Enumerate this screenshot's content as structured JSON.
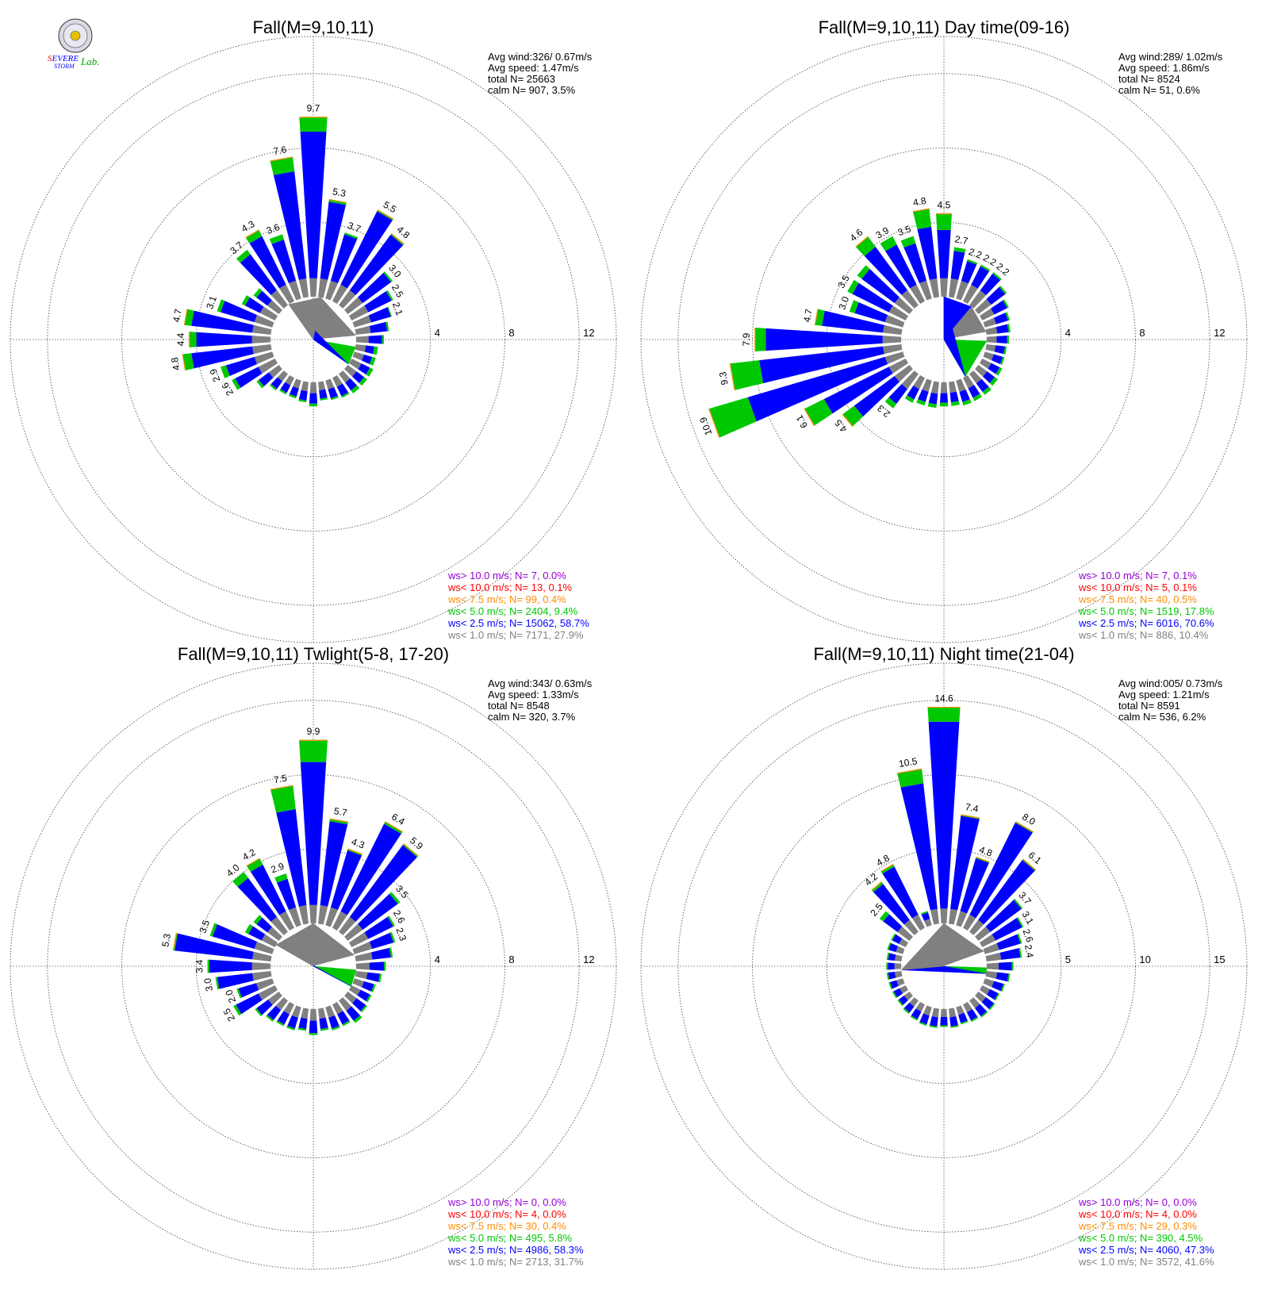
{
  "colors": {
    "calm": "#808080",
    "ws_gt_10": "#9400d3",
    "ws_lt_10": "#ff0000",
    "ws_lt_7_5": "#ff8c00",
    "ws_lt_5": "#00c800",
    "ws_lt_2_5": "#0000ff",
    "ws_lt_1": "#808080",
    "ring": "#555555"
  },
  "logo": {
    "text": "SEVERE STORM Lab.",
    "icon": "lab-seal-icon"
  },
  "chart_data": [
    {
      "type": "wind-rose",
      "title": "Fall(M=9,10,11)",
      "rings": [
        4,
        8,
        12
      ],
      "rmax": 14,
      "stats": [
        "Avg wind:326/ 0.67m/s",
        "Avg speed: 1.47m/s",
        "total N=     25663",
        "calm N=    907,   3.5%"
      ],
      "legend": [
        "ws> 10.0 m/s; N=     7,  0.0%",
        "ws< 10.0 m/s; N=    13,  0.1%",
        "ws<  7.5 m/s; N=    99,  0.4%",
        "ws<  5.0 m/s; N=  2404,  9.4%",
        "ws<  2.5 m/s; N= 15062, 58.7%",
        "ws<  1.0 m/s; N=  7171, 27.9%"
      ],
      "calm_sectors": [
        {
          "start": 10,
          "end": 85,
          "band": "ws_lt_1"
        },
        {
          "start": 85,
          "end": 100,
          "band": "none"
        },
        {
          "start": 100,
          "end": 125,
          "band": "ws_lt_5"
        },
        {
          "start": 125,
          "end": 325,
          "band": "ws_lt_2_5"
        },
        {
          "start": 325,
          "end": 370,
          "band": "ws_lt_1"
        }
      ],
      "directions": [
        0,
        10,
        20,
        30,
        40,
        50,
        60,
        70,
        80,
        90,
        100,
        110,
        120,
        130,
        140,
        150,
        160,
        170,
        180,
        190,
        200,
        210,
        220,
        230,
        240,
        250,
        260,
        270,
        280,
        290,
        300,
        310,
        320,
        330,
        340,
        350
      ],
      "values": [
        9.7,
        5.3,
        3.7,
        5.5,
        4.8,
        3.0,
        2.5,
        2.1,
        1.8,
        1.5,
        1.2,
        1.2,
        1.3,
        1.3,
        1.3,
        1.2,
        1.1,
        1.0,
        1.3,
        1.1,
        1.0,
        1.0,
        1.1,
        1.5,
        2.6,
        2.9,
        4.8,
        4.4,
        4.7,
        3.1,
        2.0,
        1.7,
        3.7,
        4.3,
        3.6,
        7.6
      ],
      "green": [
        0.8,
        0.15,
        0.1,
        0.1,
        0.1,
        0.1,
        0.1,
        0.05,
        0.1,
        0.1,
        0.2,
        0.2,
        0.2,
        0.2,
        0.2,
        0.1,
        0.1,
        0.1,
        0.15,
        0.1,
        0.1,
        0.1,
        0.1,
        0.15,
        0.2,
        0.3,
        0.5,
        0.4,
        0.4,
        0.2,
        0.2,
        0.2,
        0.3,
        0.4,
        0.3,
        0.8
      ],
      "labels": [
        9.7,
        5.3,
        3.7,
        5.5,
        4.8,
        3.0,
        2.5,
        2.1,
        null,
        null,
        null,
        null,
        null,
        null,
        null,
        null,
        null,
        null,
        null,
        null,
        null,
        null,
        null,
        null,
        2.6,
        2.9,
        4.8,
        4.4,
        4.7,
        3.1,
        null,
        null,
        3.7,
        4.3,
        3.6,
        7.6
      ]
    },
    {
      "type": "wind-rose",
      "title": "Fall(M=9,10,11) Day time(09-16)",
      "rings": [
        4,
        8,
        12
      ],
      "rmax": 14,
      "stats": [
        "Avg wind:289/ 1.02m/s",
        "Avg speed: 1.86m/s",
        "total N=      8524",
        "calm N=     51,   0.6%"
      ],
      "legend": [
        "ws> 10.0 m/s; N=     7,  0.1%",
        "ws< 10.0 m/s; N=     5,  0.1%",
        "ws<  7.5 m/s; N=    40,  0.5%",
        "ws<  5.0 m/s; N=  1519, 17.8%",
        "ws<  2.5 m/s; N=  6016, 70.6%",
        "ws<  1.0 m/s; N=   886, 10.4%"
      ],
      "calm_sectors": [
        {
          "start": 0,
          "end": 40,
          "band": "ws_lt_2_5"
        },
        {
          "start": 40,
          "end": 80,
          "band": "ws_lt_1"
        },
        {
          "start": 80,
          "end": 92,
          "band": "none"
        },
        {
          "start": 92,
          "end": 150,
          "band": "ws_lt_5"
        },
        {
          "start": 150,
          "end": 360,
          "band": "ws_lt_2_5"
        }
      ],
      "directions": [
        0,
        10,
        20,
        30,
        40,
        50,
        60,
        70,
        80,
        90,
        100,
        110,
        120,
        130,
        140,
        150,
        160,
        170,
        180,
        190,
        200,
        210,
        220,
        230,
        240,
        250,
        260,
        270,
        280,
        290,
        300,
        310,
        320,
        330,
        340,
        350
      ],
      "values": [
        4.5,
        2.7,
        2.2,
        2.2,
        2.2,
        1.9,
        1.6,
        1.4,
        1.3,
        1.2,
        1.1,
        1.1,
        1.2,
        1.3,
        1.4,
        1.4,
        1.4,
        1.3,
        1.3,
        1.4,
        1.4,
        1.5,
        2.3,
        4.5,
        6.1,
        10.9,
        9.3,
        7.9,
        4.7,
        3.0,
        3.5,
        3.5,
        4.6,
        3.9,
        3.5,
        4.8
      ],
      "green": [
        0.9,
        0.2,
        0.1,
        0.1,
        0.1,
        0.1,
        0.1,
        0.1,
        0.1,
        0.1,
        0.1,
        0.1,
        0.15,
        0.2,
        0.2,
        0.2,
        0.2,
        0.2,
        0.2,
        0.2,
        0.2,
        0.2,
        0.3,
        0.8,
        1.2,
        2.2,
        1.6,
        0.6,
        0.4,
        0.3,
        0.3,
        0.3,
        0.7,
        0.5,
        0.4,
        1.0
      ],
      "labels": [
        4.5,
        2.7,
        2.2,
        2.2,
        2.2,
        null,
        null,
        null,
        null,
        null,
        null,
        null,
        null,
        null,
        null,
        null,
        null,
        null,
        null,
        null,
        null,
        null,
        2.3,
        4.5,
        6.1,
        10.9,
        9.3,
        7.9,
        4.7,
        3.0,
        3.5,
        null,
        4.6,
        3.9,
        3.5,
        4.8
      ]
    },
    {
      "type": "wind-rose",
      "title": "Fall(M=9,10,11) Twlight(5-8, 17-20)",
      "rings": [
        4,
        8,
        12
      ],
      "rmax": 14,
      "stats": [
        "Avg wind:343/ 0.63m/s",
        "Avg speed: 1.33m/s",
        "total N=      8548",
        "calm N=    320,   3.7%"
      ],
      "legend": [
        "ws> 10.0 m/s; N=     0,  0.0%",
        "ws< 10.0 m/s; N=     4,  0.0%",
        "ws<  7.5 m/s; N=    30,  0.4%",
        "ws<  5.0 m/s; N=   495,  5.8%",
        "ws<  2.5 m/s; N=  4986, 58.3%",
        "ws<  1.0 m/s; N=  2713, 31.7%"
      ],
      "calm_sectors": [
        {
          "start": 0,
          "end": 75,
          "band": "ws_lt_1"
        },
        {
          "start": 75,
          "end": 95,
          "band": "none"
        },
        {
          "start": 95,
          "end": 118,
          "band": "ws_lt_5"
        },
        {
          "start": 118,
          "end": 300,
          "band": "ws_lt_2_5"
        },
        {
          "start": 300,
          "end": 360,
          "band": "ws_lt_1"
        }
      ],
      "directions": [
        0,
        10,
        20,
        30,
        40,
        50,
        60,
        70,
        80,
        90,
        100,
        110,
        120,
        130,
        140,
        150,
        160,
        170,
        180,
        190,
        200,
        210,
        220,
        230,
        240,
        250,
        260,
        270,
        280,
        290,
        300,
        310,
        320,
        330,
        340,
        350
      ],
      "values": [
        9.9,
        5.7,
        4.3,
        6.4,
        5.9,
        3.5,
        2.6,
        2.3,
        2.0,
        1.6,
        1.4,
        1.2,
        1.2,
        1.3,
        1.5,
        1.3,
        1.3,
        1.2,
        1.4,
        1.2,
        1.3,
        1.3,
        1.4,
        1.6,
        2.5,
        2.0,
        3.0,
        3.4,
        5.3,
        3.5,
        1.8,
        1.7,
        4.0,
        4.2,
        2.9,
        7.5
      ],
      "green": [
        1.2,
        0.15,
        0.1,
        0.15,
        0.1,
        0.15,
        0.1,
        0.1,
        0.1,
        0.1,
        0.1,
        0.1,
        0.1,
        0.1,
        0.15,
        0.1,
        0.1,
        0.1,
        0.1,
        0.1,
        0.1,
        0.1,
        0.1,
        0.1,
        0.15,
        0.1,
        0.1,
        0.1,
        0.1,
        0.15,
        0.2,
        0.2,
        0.4,
        0.4,
        0.3,
        1.3
      ],
      "labels": [
        9.9,
        5.7,
        4.3,
        6.4,
        5.9,
        3.5,
        2.6,
        2.3,
        null,
        null,
        null,
        null,
        null,
        null,
        null,
        null,
        null,
        null,
        null,
        null,
        null,
        null,
        null,
        null,
        2.5,
        2.0,
        3.0,
        3.4,
        5.3,
        3.5,
        null,
        null,
        4.0,
        4.2,
        2.9,
        7.5
      ]
    },
    {
      "type": "wind-rose",
      "title": "Fall(M=9,10,11) Night time(21-04)",
      "rings": [
        5,
        10,
        15
      ],
      "rmax": 17.5,
      "stats": [
        "Avg wind:005/ 0.73m/s",
        "Avg speed: 1.21m/s",
        "total N=      8591",
        "calm N=    536,   6.2%"
      ],
      "legend": [
        "ws> 10.0 m/s; N=     0,  0.0%",
        "ws< 10.0 m/s; N=     4,  0.0%",
        "ws<  7.5 m/s; N=    29,  0.3%",
        "ws<  5.0 m/s; N=   390,  4.5%",
        "ws<  2.5 m/s; N=  4060, 47.3%",
        "ws<  1.0 m/s; N=  3572, 41.6%"
      ],
      "calm_sectors": [
        {
          "start": 0,
          "end": 70,
          "band": "ws_lt_1"
        },
        {
          "start": 70,
          "end": 92,
          "band": "none"
        },
        {
          "start": 92,
          "end": 100,
          "band": "ws_lt_5"
        },
        {
          "start": 100,
          "end": 265,
          "band": "ws_lt_2_5"
        },
        {
          "start": 265,
          "end": 360,
          "band": "ws_lt_1"
        }
      ],
      "directions": [
        0,
        10,
        20,
        30,
        40,
        50,
        60,
        70,
        80,
        90,
        100,
        110,
        120,
        130,
        140,
        150,
        160,
        170,
        180,
        190,
        200,
        210,
        220,
        230,
        240,
        250,
        260,
        270,
        280,
        290,
        300,
        310,
        320,
        330,
        340,
        350
      ],
      "values": [
        14.6,
        7.4,
        4.8,
        8.0,
        6.1,
        3.7,
        3.1,
        2.6,
        2.4,
        1.8,
        1.6,
        1.4,
        1.3,
        1.4,
        1.4,
        1.3,
        1.2,
        1.3,
        1.2,
        1.3,
        1.3,
        1.2,
        1.1,
        1.0,
        1.0,
        1.0,
        1.0,
        1.0,
        1.0,
        1.1,
        1.1,
        2.5,
        4.2,
        4.8,
        1.0,
        10.5
      ],
      "green": [
        1.0,
        0.1,
        0.1,
        0.1,
        0.1,
        0.1,
        0.1,
        0.1,
        0.1,
        0.1,
        0.1,
        0.1,
        0.1,
        0.1,
        0.1,
        0.1,
        0.1,
        0.1,
        0.1,
        0.1,
        0.1,
        0.1,
        0.1,
        0.1,
        0.1,
        0.1,
        0.1,
        0.1,
        0.1,
        0.1,
        0.1,
        0.3,
        0.2,
        0.2,
        0.1,
        1.0
      ],
      "labels": [
        14.6,
        7.4,
        4.8,
        8.0,
        6.1,
        3.7,
        3.1,
        2.6,
        2.4,
        null,
        null,
        null,
        null,
        null,
        null,
        null,
        null,
        null,
        null,
        null,
        null,
        null,
        null,
        null,
        null,
        null,
        null,
        null,
        null,
        null,
        null,
        2.5,
        4.2,
        4.8,
        null,
        10.5
      ]
    }
  ]
}
